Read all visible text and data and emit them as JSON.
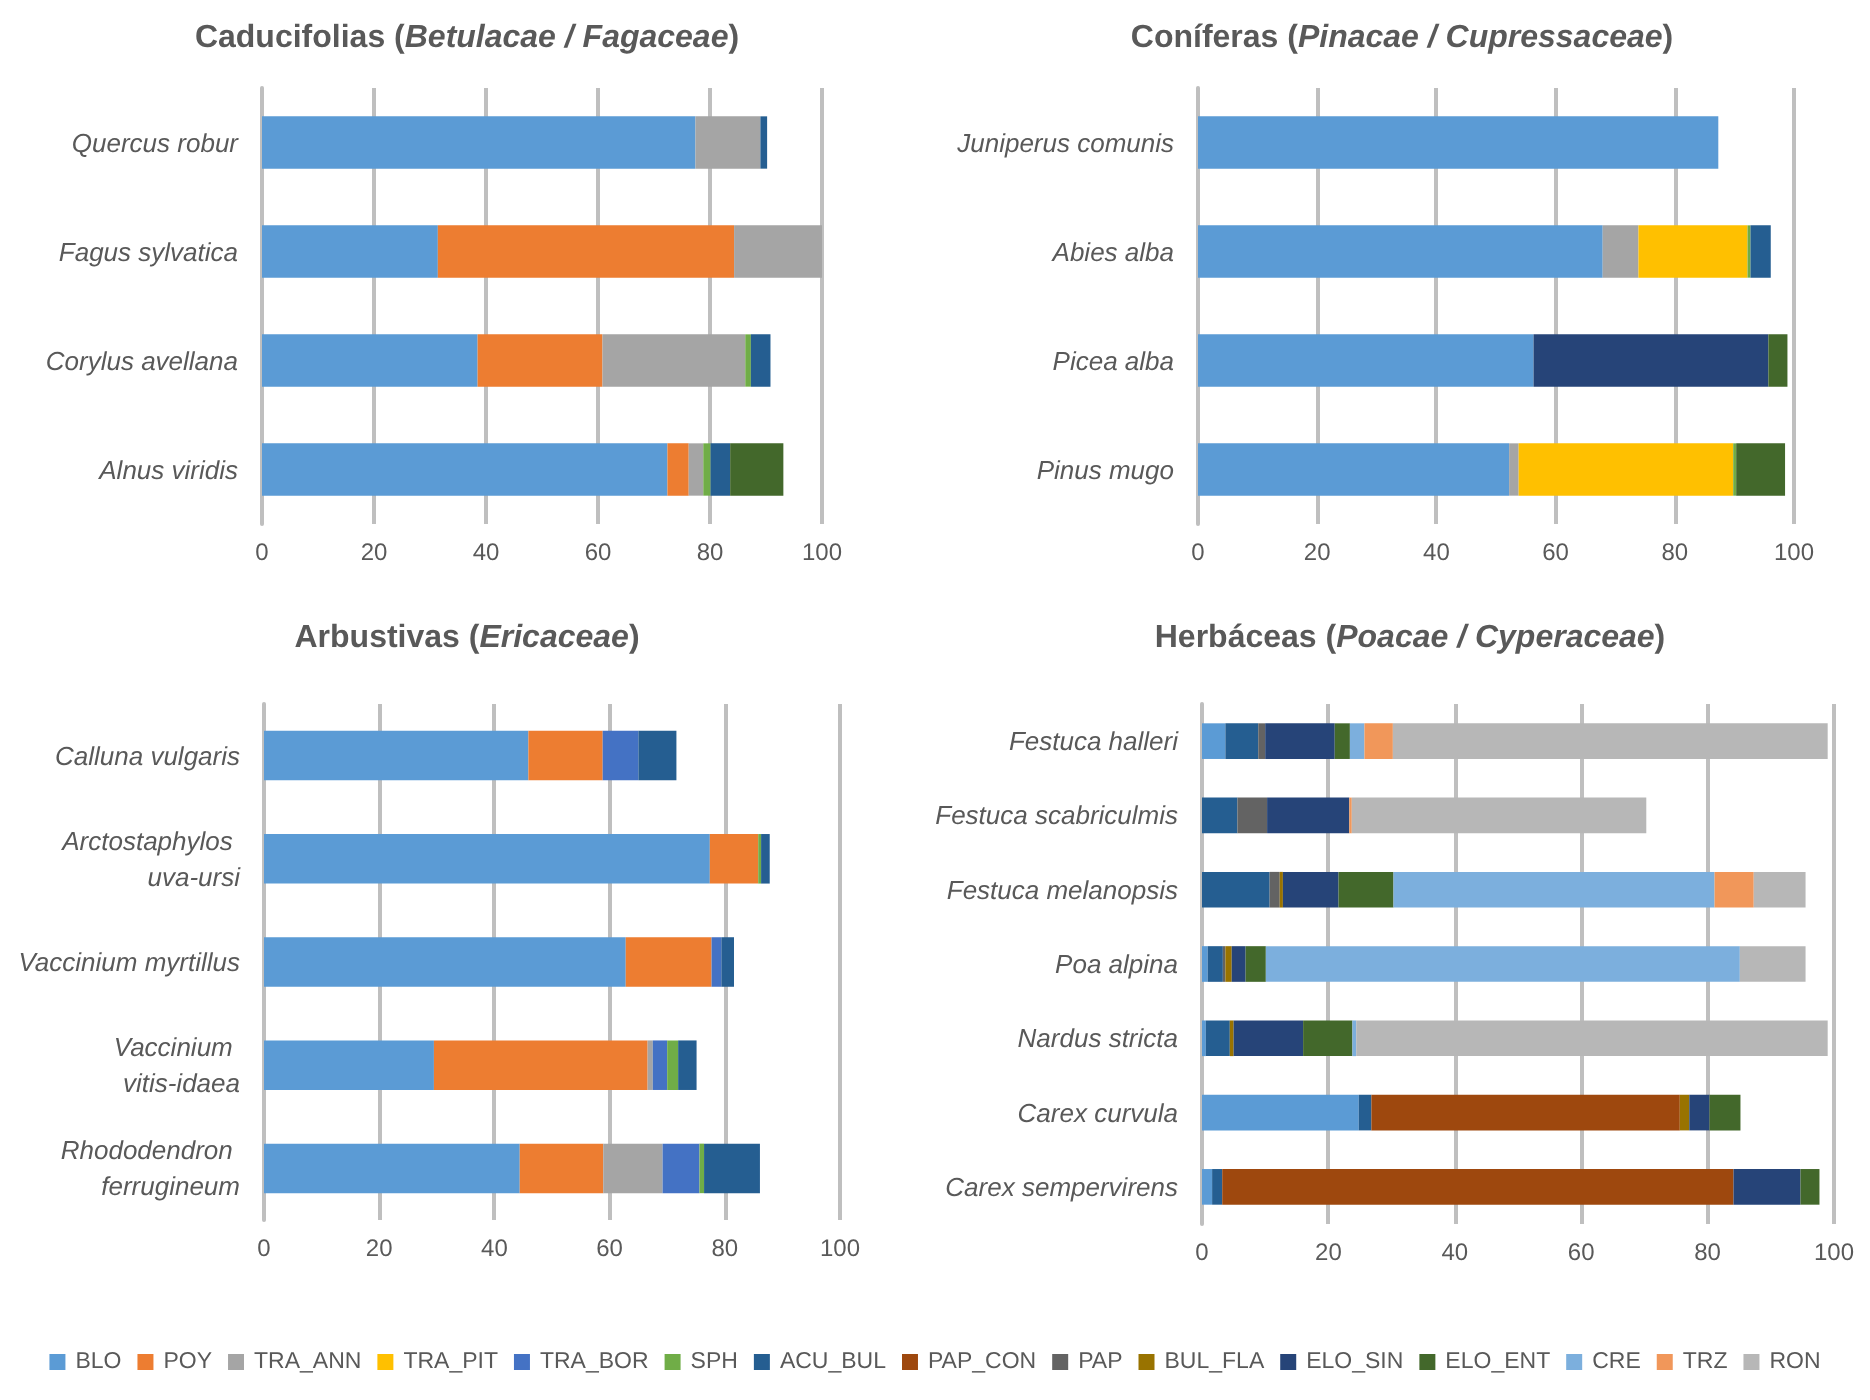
{
  "chart_data": [
    {
      "type": "bar",
      "orientation": "horizontal",
      "stacked": true,
      "title": "Caducifolias (Betulacae / Fagaceae)",
      "categories": [
        "Quercus robur",
        "Fagus sylvatica",
        "Corylus avellana",
        "Alnus viridis"
      ],
      "xlim": [
        0,
        100
      ],
      "xticks": [
        0,
        20,
        40,
        60,
        80,
        100
      ],
      "grid": "x",
      "series": [
        {
          "color": "#5b9bd5",
          "values": [
            77.4,
            31.4,
            38.5,
            72.4
          ]
        },
        {
          "color": "#ed7d31",
          "values": [
            null,
            52.9,
            22.3,
            3.8
          ]
        },
        {
          "color": "#a5a5a5",
          "values": [
            11.6,
            15.7,
            25.5,
            2.6
          ]
        },
        {
          "color": "#70ad47",
          "values": [
            null,
            null,
            1.0,
            1.3
          ]
        },
        {
          "color": "#255e91",
          "values": [
            1.2,
            null,
            3.5,
            3.5
          ]
        },
        {
          "color": "#43682b",
          "values": [
            null,
            null,
            null,
            9.5
          ]
        }
      ]
    },
    {
      "type": "bar",
      "orientation": "horizontal",
      "stacked": true,
      "title": "Coníferas (Pinacae / Cupressaceae)",
      "categories": [
        "Juniperus comunis",
        "Abies alba",
        "Picea alba",
        "Pinus mugo"
      ],
      "xlim": [
        0,
        100
      ],
      "xticks": [
        0,
        20,
        40,
        60,
        80,
        100
      ],
      "grid": "x",
      "series": [
        {
          "color": "#5b9bd5",
          "values": [
            87.3,
            67.9,
            56.3,
            52.2
          ]
        },
        {
          "color": "#a5a5a5",
          "values": [
            null,
            6.0,
            null,
            1.6
          ]
        },
        {
          "color": "#ffc000",
          "values": [
            null,
            18.3,
            null,
            36.0
          ]
        },
        {
          "color": "#70ad47",
          "values": [
            null,
            0.5,
            null,
            0.5
          ]
        },
        {
          "color": "#255e91",
          "values": [
            null,
            3.4,
            null,
            null
          ]
        },
        {
          "color": "#264478",
          "values": [
            null,
            null,
            39.4,
            null
          ]
        },
        {
          "color": "#43682b",
          "values": [
            null,
            null,
            3.2,
            8.2
          ]
        }
      ]
    },
    {
      "type": "bar",
      "orientation": "horizontal",
      "stacked": true,
      "title": "Arbustivas (Ericaceae)",
      "categories": [
        "Calluna vulgaris",
        "Arctostaphylos uva-ursi",
        "Vaccinium myrtillus",
        "Vaccinium vitis-idaea",
        "Rhododendron ferrugineum"
      ],
      "xlim": [
        0,
        100
      ],
      "xticks": [
        0,
        20,
        40,
        60,
        80,
        100
      ],
      "grid": "x",
      "series": [
        {
          "color": "#5b9bd5",
          "values": [
            45.9,
            77.4,
            62.8,
            29.5,
            44.4
          ]
        },
        {
          "color": "#ed7d31",
          "values": [
            12.9,
            8.4,
            14.9,
            37.1,
            14.5
          ]
        },
        {
          "color": "#a5a5a5",
          "values": [
            null,
            null,
            null,
            0.9,
            10.3
          ]
        },
        {
          "color": "#4472c4",
          "values": [
            6.2,
            null,
            1.7,
            2.5,
            6.4
          ]
        },
        {
          "color": "#70ad47",
          "values": [
            null,
            0.5,
            null,
            1.9,
            0.8
          ]
        },
        {
          "color": "#255e91",
          "values": [
            6.6,
            1.5,
            2.2,
            3.2,
            9.7
          ]
        }
      ]
    },
    {
      "type": "bar",
      "orientation": "horizontal",
      "stacked": true,
      "title": "Herbáceas (Poacae / Cyperaceae)",
      "categories": [
        "Festuca halleri",
        "Festuca scabriculmis",
        "Festuca melanopsis",
        "Poa alpina",
        "Nardus stricta",
        "Carex curvula",
        "Carex sempervirens"
      ],
      "xlim": [
        0,
        100
      ],
      "xticks": [
        0,
        20,
        40,
        60,
        80,
        100
      ],
      "grid": "x",
      "legend": "bottom",
      "series": [
        {
          "name": "BLO",
          "color": "#5b9bd5",
          "values": [
            3.7,
            null,
            null,
            0.9,
            0.6,
            24.8,
            1.6
          ]
        },
        {
          "name": "POY",
          "color": "#ed7d31",
          "values": [
            null,
            null,
            null,
            null,
            null,
            null,
            null
          ]
        },
        {
          "name": "TRA_ANN",
          "color": "#a5a5a5",
          "values": [
            null,
            null,
            null,
            null,
            null,
            null,
            null
          ]
        },
        {
          "name": "TRA_PIT",
          "color": "#ffc000",
          "values": [
            null,
            null,
            null,
            null,
            null,
            null,
            null
          ]
        },
        {
          "name": "TRA_BOR",
          "color": "#4472c4",
          "values": [
            null,
            null,
            null,
            null,
            null,
            null,
            null
          ]
        },
        {
          "name": "SPH",
          "color": "#70ad47",
          "values": [
            null,
            null,
            null,
            null,
            null,
            null,
            null
          ]
        },
        {
          "name": "ACU_BUL",
          "color": "#255e91",
          "values": [
            5.2,
            5.6,
            10.7,
            2.4,
            3.8,
            2.0,
            1.6
          ]
        },
        {
          "name": "PAP_CON",
          "color": "#9e480e",
          "values": [
            null,
            null,
            null,
            null,
            null,
            48.8,
            80.9
          ]
        },
        {
          "name": "PAP",
          "color": "#636363",
          "values": [
            1.1,
            4.7,
            1.6,
            0.4,
            null,
            null,
            null
          ]
        },
        {
          "name": "BUL_FLA",
          "color": "#997300",
          "values": [
            null,
            null,
            0.5,
            1.0,
            0.6,
            1.5,
            null
          ]
        },
        {
          "name": "ELO_SIN",
          "color": "#264478",
          "values": [
            11.0,
            13.0,
            8.8,
            2.2,
            11.0,
            3.2,
            10.6
          ]
        },
        {
          "name": "ELO_ENT",
          "color": "#43682b",
          "values": [
            2.4,
            null,
            8.7,
            3.2,
            7.8,
            4.9,
            3.0
          ]
        },
        {
          "name": "CRE",
          "color": "#7cafdd",
          "values": [
            2.3,
            null,
            50.8,
            75.0,
            0.6,
            null,
            null
          ]
        },
        {
          "name": "TRZ",
          "color": "#f1975a",
          "values": [
            4.5,
            0.4,
            6.2,
            null,
            null,
            null,
            null
          ]
        },
        {
          "name": "RON",
          "color": "#b7b7b7",
          "values": [
            68.8,
            46.6,
            8.2,
            10.4,
            74.6,
            null,
            null
          ]
        }
      ]
    }
  ]
}
